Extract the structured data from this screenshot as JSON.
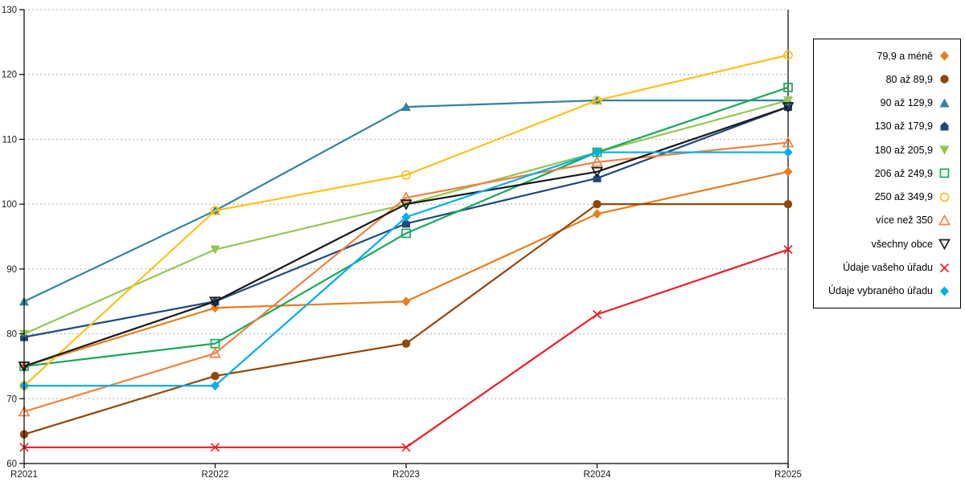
{
  "chart_data": {
    "type": "line",
    "title": "",
    "xlabel": "",
    "ylabel": "",
    "x_categories": [
      "R2021",
      "R2022",
      "R2023",
      "R2024",
      "R2025"
    ],
    "y_ticks": [
      60,
      70,
      80,
      90,
      100,
      110,
      120,
      130
    ],
    "ylim": [
      60,
      130
    ],
    "grid": "horizontal-dashed",
    "legend_position": "right",
    "series": [
      {
        "name": "79,9 a méně",
        "marker": "diamond-filled",
        "color": "#E87D1E",
        "values": [
          75,
          84,
          85,
          98.5,
          105
        ]
      },
      {
        "name": "80 až 89,9",
        "marker": "circle-filled",
        "color": "#904708",
        "values": [
          64.5,
          73.5,
          78.5,
          100,
          100
        ]
      },
      {
        "name": "90 až 129,9",
        "marker": "triangle-filled",
        "color": "#31849B",
        "values": [
          85,
          99,
          115,
          116,
          116
        ]
      },
      {
        "name": "130 až 179,9",
        "marker": "pentagon-filled",
        "color": "#1F497D",
        "values": [
          79.5,
          85,
          97,
          104,
          115
        ]
      },
      {
        "name": "180 až 205,9",
        "marker": "triangle-down-filled",
        "color": "#95C554",
        "values": [
          80,
          93,
          100,
          108,
          116
        ]
      },
      {
        "name": "206 až 249,9",
        "marker": "square-open",
        "color": "#18A85A",
        "values": [
          75,
          78.5,
          95.5,
          108,
          118
        ]
      },
      {
        "name": "250 až 349,9",
        "marker": "circle-open",
        "color": "#FBC118",
        "values": [
          72,
          99,
          104.5,
          116,
          123
        ]
      },
      {
        "name": "více než 350",
        "marker": "triangle-open",
        "color": "#F5803E",
        "values": [
          68,
          77,
          101,
          106.5,
          109.5
        ]
      },
      {
        "name": "všechny obce",
        "marker": "triangle-down-open",
        "color": "#1A1A1A",
        "values": [
          75,
          85,
          100,
          105,
          115
        ]
      },
      {
        "name": "Údaje vašeho úřadu",
        "marker": "x-cross",
        "color": "#EE1C25",
        "values": [
          62.5,
          62.5,
          62.5,
          83,
          93
        ]
      },
      {
        "name": "Údaje vybraného úřadu",
        "marker": "diamond-filled",
        "color": "#00AEEF",
        "values": [
          72,
          72,
          98,
          108,
          108
        ]
      }
    ],
    "axis_color": "#000000",
    "gridline_color": "#ABABAB",
    "tick_label_color": "#1a1a1a"
  }
}
